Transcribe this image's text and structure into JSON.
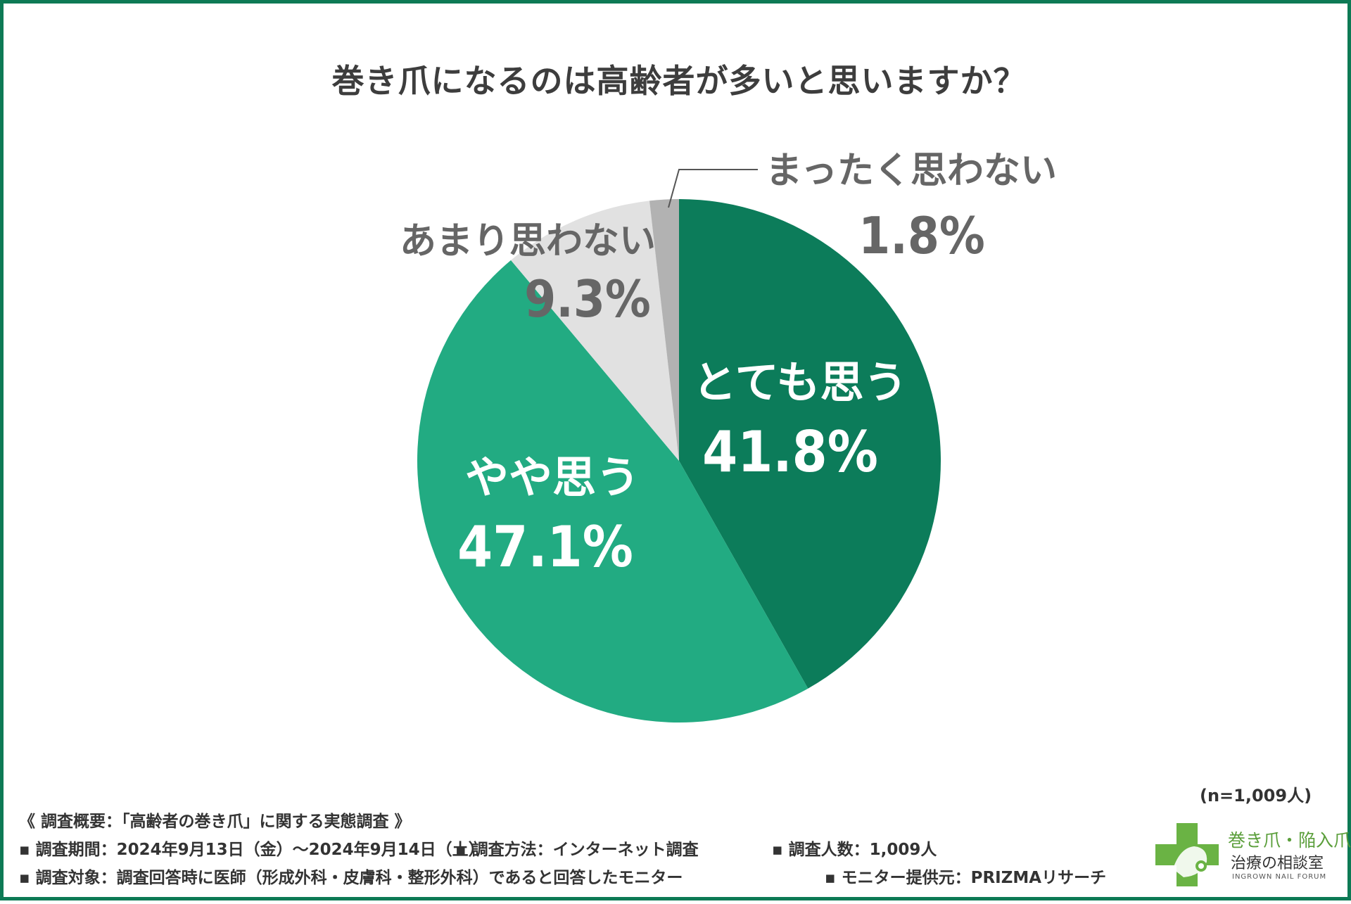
{
  "chart_data": {
    "type": "pie",
    "title": "巻き爪になるのは高齢者が多いと思いますか？",
    "slices": [
      {
        "label": "とても思う",
        "value": 41.8,
        "value_label": "41.8%",
        "color": "#0c7c5a",
        "text_color": "#ffffff"
      },
      {
        "label": "やや思う",
        "value": 47.1,
        "value_label": "47.1%",
        "color": "#22ab82",
        "text_color": "#ffffff"
      },
      {
        "label": "あまり思わない",
        "value": 9.3,
        "value_label": "9.3%",
        "color": "#e1e1e1",
        "text_color": "#666666"
      },
      {
        "label": "まったく思わない",
        "value": 1.8,
        "value_label": "1.8%",
        "color": "#b2b2b2",
        "text_color": "#666666"
      }
    ]
  },
  "sample": "(n=1,009人)",
  "notes": {
    "header": "《 調査概要：「高齢者の巻き爪」に関する実態調査 》",
    "row1": [
      "▪ 調査期間：2024年9月13日（金）〜2024年9月14日（土）",
      "▪ 調査方法：インターネット調査",
      "▪ 調査人数：1,009人"
    ],
    "row2": [
      "▪ 調査対象：調査回答時に医師（形成外科・皮膚科・整形外科）であると回答したモニター",
      "▪ モニター提供元：PRIZMAリサーチ"
    ]
  },
  "logo": {
    "line1": "巻き爪・陥入爪",
    "line2": "治療の相談室",
    "line3": "INGROWN NAIL FORUM",
    "color": "#6ab344"
  }
}
